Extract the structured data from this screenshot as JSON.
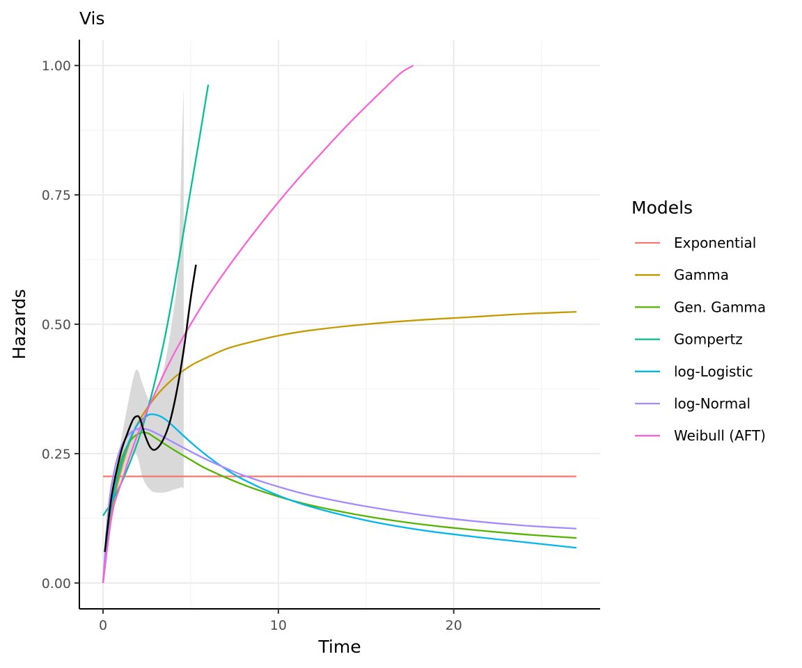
{
  "chart_data": {
    "type": "line",
    "title": "Vis",
    "xlabel": "Time",
    "ylabel": "Hazards",
    "xlim": [
      -1.35,
      28.35
    ],
    "ylim": [
      -0.05,
      1.05
    ],
    "x_ticks": [
      0,
      10,
      20
    ],
    "y_ticks": [
      0.0,
      0.25,
      0.5,
      0.75,
      1.0
    ],
    "x_tick_labels": [
      "0",
      "10",
      "20"
    ],
    "y_tick_labels": [
      "0.00",
      "0.25",
      "0.50",
      "0.75",
      "1.00"
    ],
    "grid": true,
    "legend": {
      "title": "Models",
      "position": "right"
    },
    "empirical": {
      "color": "#000000",
      "x": [
        0.1,
        0.5,
        1.0,
        1.4,
        1.7,
        1.9,
        2.1,
        2.4,
        2.7,
        3.0,
        3.4,
        3.8,
        4.2,
        4.6,
        5.0,
        5.3
      ],
      "y": [
        0.06,
        0.17,
        0.25,
        0.29,
        0.315,
        0.322,
        0.318,
        0.285,
        0.262,
        0.258,
        0.275,
        0.31,
        0.37,
        0.45,
        0.55,
        0.615
      ],
      "ci_x": [
        0.1,
        0.5,
        1.0,
        1.5,
        1.8,
        2.0,
        2.3,
        2.7,
        3.0,
        3.5,
        4.0,
        4.3,
        4.5,
        4.6
      ],
      "ci_upper": [
        0.09,
        0.17,
        0.27,
        0.36,
        0.405,
        0.41,
        0.38,
        0.35,
        0.37,
        0.42,
        0.52,
        0.62,
        0.85,
        0.96
      ],
      "ci_lower": [
        0.04,
        0.12,
        0.2,
        0.24,
        0.25,
        0.24,
        0.2,
        0.18,
        0.175,
        0.175,
        0.18,
        0.183,
        0.185,
        0.182
      ],
      "ci_color": "#d9d9d9"
    },
    "series": [
      {
        "name": "Exponential",
        "color": "#F8766D",
        "x": [
          0,
          27
        ],
        "y": [
          0.206,
          0.206
        ]
      },
      {
        "name": "Gamma",
        "color": "#C49A00",
        "x": [
          0,
          0.5,
          1,
          1.5,
          2,
          3,
          4,
          5,
          6,
          7,
          8,
          10,
          12,
          15,
          18,
          21,
          24,
          27
        ],
        "y": [
          0.0,
          0.14,
          0.215,
          0.27,
          0.31,
          0.36,
          0.395,
          0.42,
          0.437,
          0.452,
          0.462,
          0.478,
          0.489,
          0.5,
          0.508,
          0.514,
          0.52,
          0.524
        ]
      },
      {
        "name": "Gen. Gamma",
        "color": "#53B400",
        "x": [
          0,
          0.3,
          0.6,
          1,
          1.5,
          2,
          2.5,
          3,
          4,
          5,
          6,
          8,
          10,
          12,
          15,
          18,
          21,
          24,
          27
        ],
        "y": [
          0.0,
          0.12,
          0.18,
          0.235,
          0.272,
          0.288,
          0.29,
          0.28,
          0.258,
          0.238,
          0.219,
          0.19,
          0.167,
          0.149,
          0.129,
          0.114,
          0.103,
          0.094,
          0.087
        ]
      },
      {
        "name": "Gompertz",
        "color": "#00C094",
        "x": [
          0,
          0.5,
          1,
          1.5,
          2,
          2.5,
          3,
          3.5,
          4,
          4.5,
          5,
          5.5,
          6
        ],
        "y": [
          0.13,
          0.157,
          0.19,
          0.23,
          0.275,
          0.33,
          0.395,
          0.47,
          0.56,
          0.66,
          0.76,
          0.86,
          0.963
        ]
      },
      {
        "name": "log-Logistic",
        "color": "#00B6EB",
        "x": [
          0,
          0.3,
          0.6,
          1,
          1.5,
          2,
          2.5,
          2.8,
          3.2,
          3.6,
          4,
          5,
          6,
          7,
          8,
          10,
          12,
          15,
          18,
          21,
          24,
          27
        ],
        "y": [
          0.0,
          0.11,
          0.17,
          0.225,
          0.275,
          0.308,
          0.323,
          0.326,
          0.323,
          0.315,
          0.303,
          0.272,
          0.244,
          0.22,
          0.2,
          0.169,
          0.146,
          0.121,
          0.103,
          0.09,
          0.079,
          0.068
        ]
      },
      {
        "name": "log-Normal",
        "color": "#A58AFF",
        "x": [
          0,
          0.3,
          0.6,
          1,
          1.5,
          2,
          2.5,
          3,
          4,
          5,
          6,
          7,
          8,
          10,
          12,
          15,
          18,
          21,
          24,
          27
        ],
        "y": [
          0.0,
          0.14,
          0.21,
          0.26,
          0.288,
          0.298,
          0.297,
          0.29,
          0.272,
          0.254,
          0.237,
          0.222,
          0.208,
          0.186,
          0.168,
          0.148,
          0.132,
          0.12,
          0.111,
          0.105
        ]
      },
      {
        "name": "Weibull (AFT)",
        "color": "#FB61D7",
        "x": [
          0,
          0.5,
          1,
          2,
          3,
          4,
          5,
          6,
          7,
          8,
          9,
          10,
          11,
          12,
          13,
          14,
          15,
          16,
          17,
          17.7
        ],
        "y": [
          0.0,
          0.13,
          0.19,
          0.29,
          0.37,
          0.44,
          0.5,
          0.555,
          0.604,
          0.65,
          0.694,
          0.736,
          0.776,
          0.814,
          0.851,
          0.887,
          0.921,
          0.954,
          0.986,
          1.0
        ]
      }
    ]
  }
}
